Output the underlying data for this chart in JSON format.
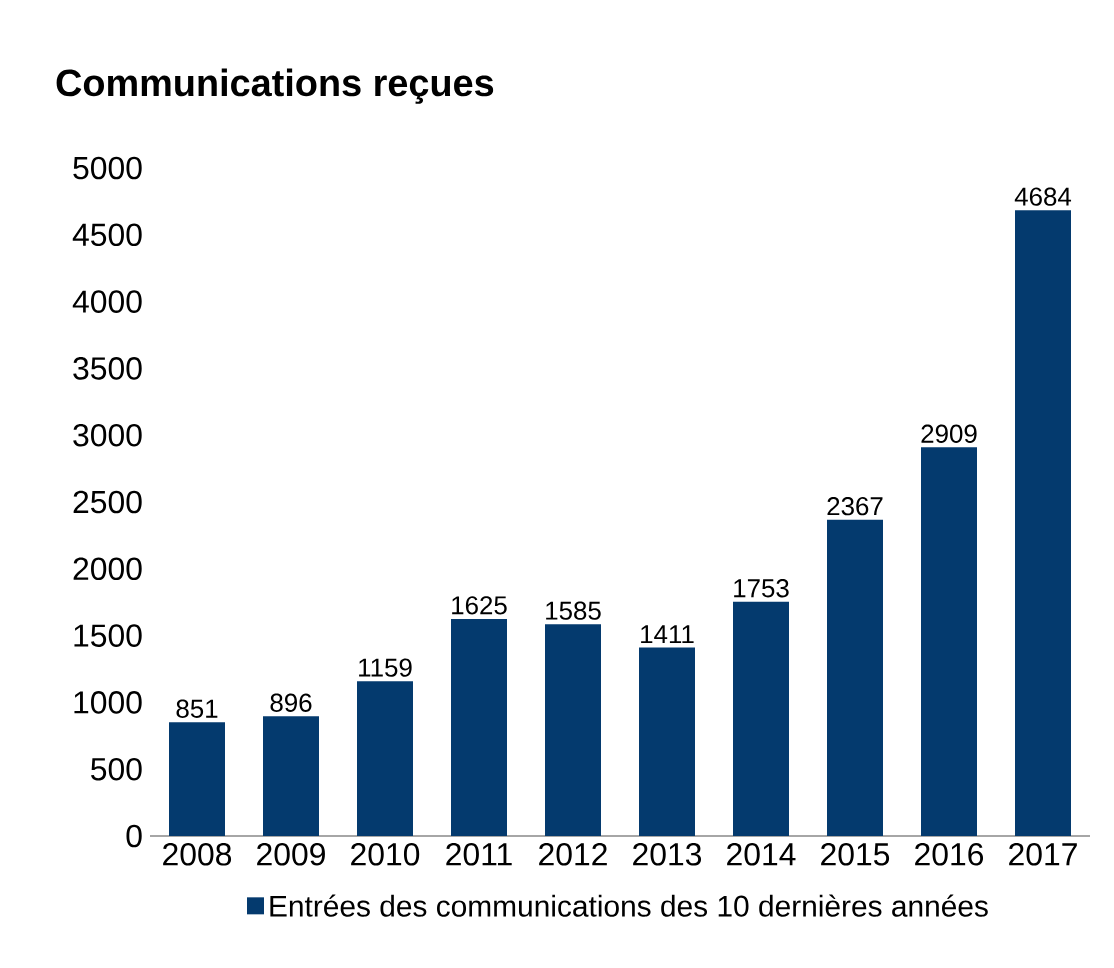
{
  "chart_data": {
    "type": "bar",
    "title": "Communications reçues",
    "categories": [
      "2008",
      "2009",
      "2010",
      "2011",
      "2012",
      "2013",
      "2014",
      "2015",
      "2016",
      "2017"
    ],
    "series": [
      {
        "name": "Entrées des communications des 10 dernières années",
        "color": "#043a6e",
        "values": [
          851,
          896,
          1159,
          1625,
          1585,
          1411,
          1753,
          2367,
          2909,
          4684
        ]
      }
    ],
    "ylim": [
      0,
      5000
    ],
    "yticks": [
      0,
      500,
      1000,
      1500,
      2000,
      2500,
      3000,
      3500,
      4000,
      4500,
      5000
    ],
    "data_labels": true,
    "legend": "bottom",
    "grid": false
  }
}
